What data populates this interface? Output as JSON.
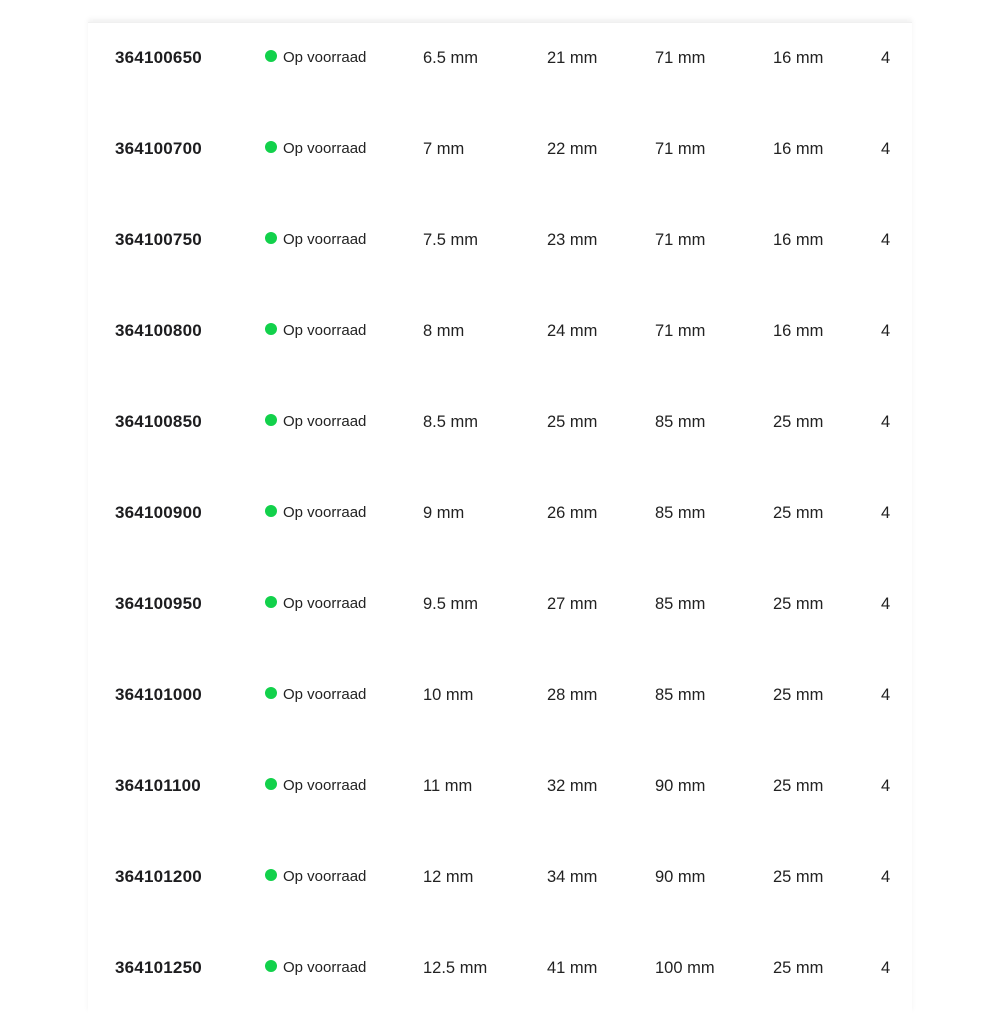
{
  "status_color": "#12d14b",
  "rows": [
    {
      "id": "364100650",
      "status": "Op voorraad",
      "d": "6.5 mm",
      "l1": "21 mm",
      "l2": "71 mm",
      "l3": "16 mm",
      "qty": "4"
    },
    {
      "id": "364100700",
      "status": "Op voorraad",
      "d": "7 mm",
      "l1": "22 mm",
      "l2": "71 mm",
      "l3": "16 mm",
      "qty": "4"
    },
    {
      "id": "364100750",
      "status": "Op voorraad",
      "d": "7.5 mm",
      "l1": "23 mm",
      "l2": "71 mm",
      "l3": "16 mm",
      "qty": "4"
    },
    {
      "id": "364100800",
      "status": "Op voorraad",
      "d": "8 mm",
      "l1": "24 mm",
      "l2": "71 mm",
      "l3": "16 mm",
      "qty": "4"
    },
    {
      "id": "364100850",
      "status": "Op voorraad",
      "d": "8.5 mm",
      "l1": "25 mm",
      "l2": "85 mm",
      "l3": "25 mm",
      "qty": "4"
    },
    {
      "id": "364100900",
      "status": "Op voorraad",
      "d": "9 mm",
      "l1": "26 mm",
      "l2": "85 mm",
      "l3": "25 mm",
      "qty": "4"
    },
    {
      "id": "364100950",
      "status": "Op voorraad",
      "d": "9.5 mm",
      "l1": "27 mm",
      "l2": "85 mm",
      "l3": "25 mm",
      "qty": "4"
    },
    {
      "id": "364101000",
      "status": "Op voorraad",
      "d": "10 mm",
      "l1": "28 mm",
      "l2": "85 mm",
      "l3": "25 mm",
      "qty": "4"
    },
    {
      "id": "364101100",
      "status": "Op voorraad",
      "d": "11 mm",
      "l1": "32 mm",
      "l2": "90 mm",
      "l3": "25 mm",
      "qty": "4"
    },
    {
      "id": "364101200",
      "status": "Op voorraad",
      "d": "12 mm",
      "l1": "34 mm",
      "l2": "90 mm",
      "l3": "25 mm",
      "qty": "4"
    },
    {
      "id": "364101250",
      "status": "Op voorraad",
      "d": "12.5 mm",
      "l1": "41 mm",
      "l2": "100 mm",
      "l3": "25 mm",
      "qty": "4"
    }
  ]
}
